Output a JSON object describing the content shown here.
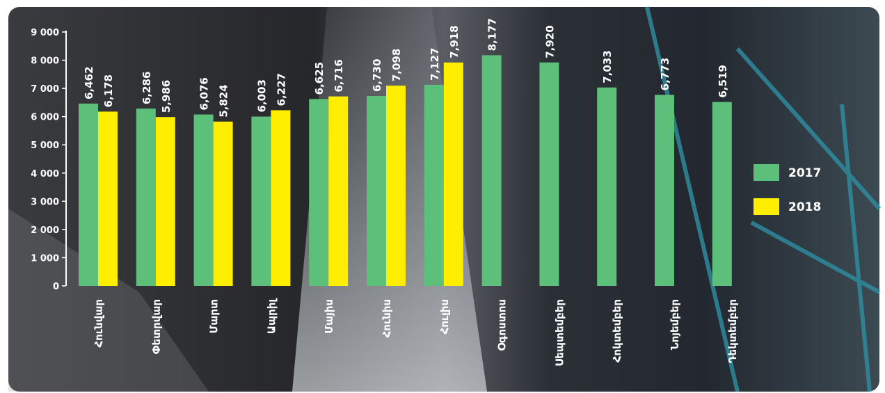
{
  "colors": {
    "series_2017": "#5cbf7a",
    "series_2018": "#ffee00",
    "text": "#ffffff",
    "axis": "#ffffff"
  },
  "chart_data": {
    "type": "bar",
    "title": "",
    "xlabel": "",
    "ylabel": "",
    "ylim": [
      0,
      9000
    ],
    "yticks": [
      0,
      1000,
      2000,
      3000,
      4000,
      5000,
      6000,
      7000,
      8000,
      9000
    ],
    "ytick_labels": [
      "0",
      "1 000",
      "2 000",
      "3 000",
      "4 000",
      "5 000",
      "6 000",
      "7 000",
      "8 000",
      "9 000"
    ],
    "categories": [
      "Հունվար",
      "Փետրվար",
      "Մարտ",
      "Ապրիլ",
      "Մայիս",
      "Հունիս",
      "Հուլիս",
      "Օգոստոս",
      "Սեպտեմբեր",
      "Հոկտեմբեր",
      "Նոյեմբեր",
      "Դեկտեմբեր"
    ],
    "series": [
      {
        "name": "2017",
        "values": [
          6462,
          6286,
          6076,
          6003,
          6625,
          6730,
          7127,
          8177,
          7920,
          7033,
          6773,
          6519
        ],
        "labels": [
          "6,462",
          "6,286",
          "6,076",
          "6,003",
          "6,625",
          "6,730",
          "7,127",
          "8,177",
          "7,920",
          "7,033",
          "6,773",
          "6,519"
        ]
      },
      {
        "name": "2018",
        "values": [
          6178,
          5986,
          5824,
          6227,
          6716,
          7098,
          7918,
          null,
          null,
          null,
          null,
          null
        ],
        "labels": [
          "6,178",
          "5,986",
          "5,824",
          "6,227",
          "6,716",
          "7,098",
          "7,918",
          null,
          null,
          null,
          null,
          null
        ]
      }
    ],
    "legend": {
      "position": "right",
      "entries": [
        "2017",
        "2018"
      ]
    },
    "grid": false
  }
}
